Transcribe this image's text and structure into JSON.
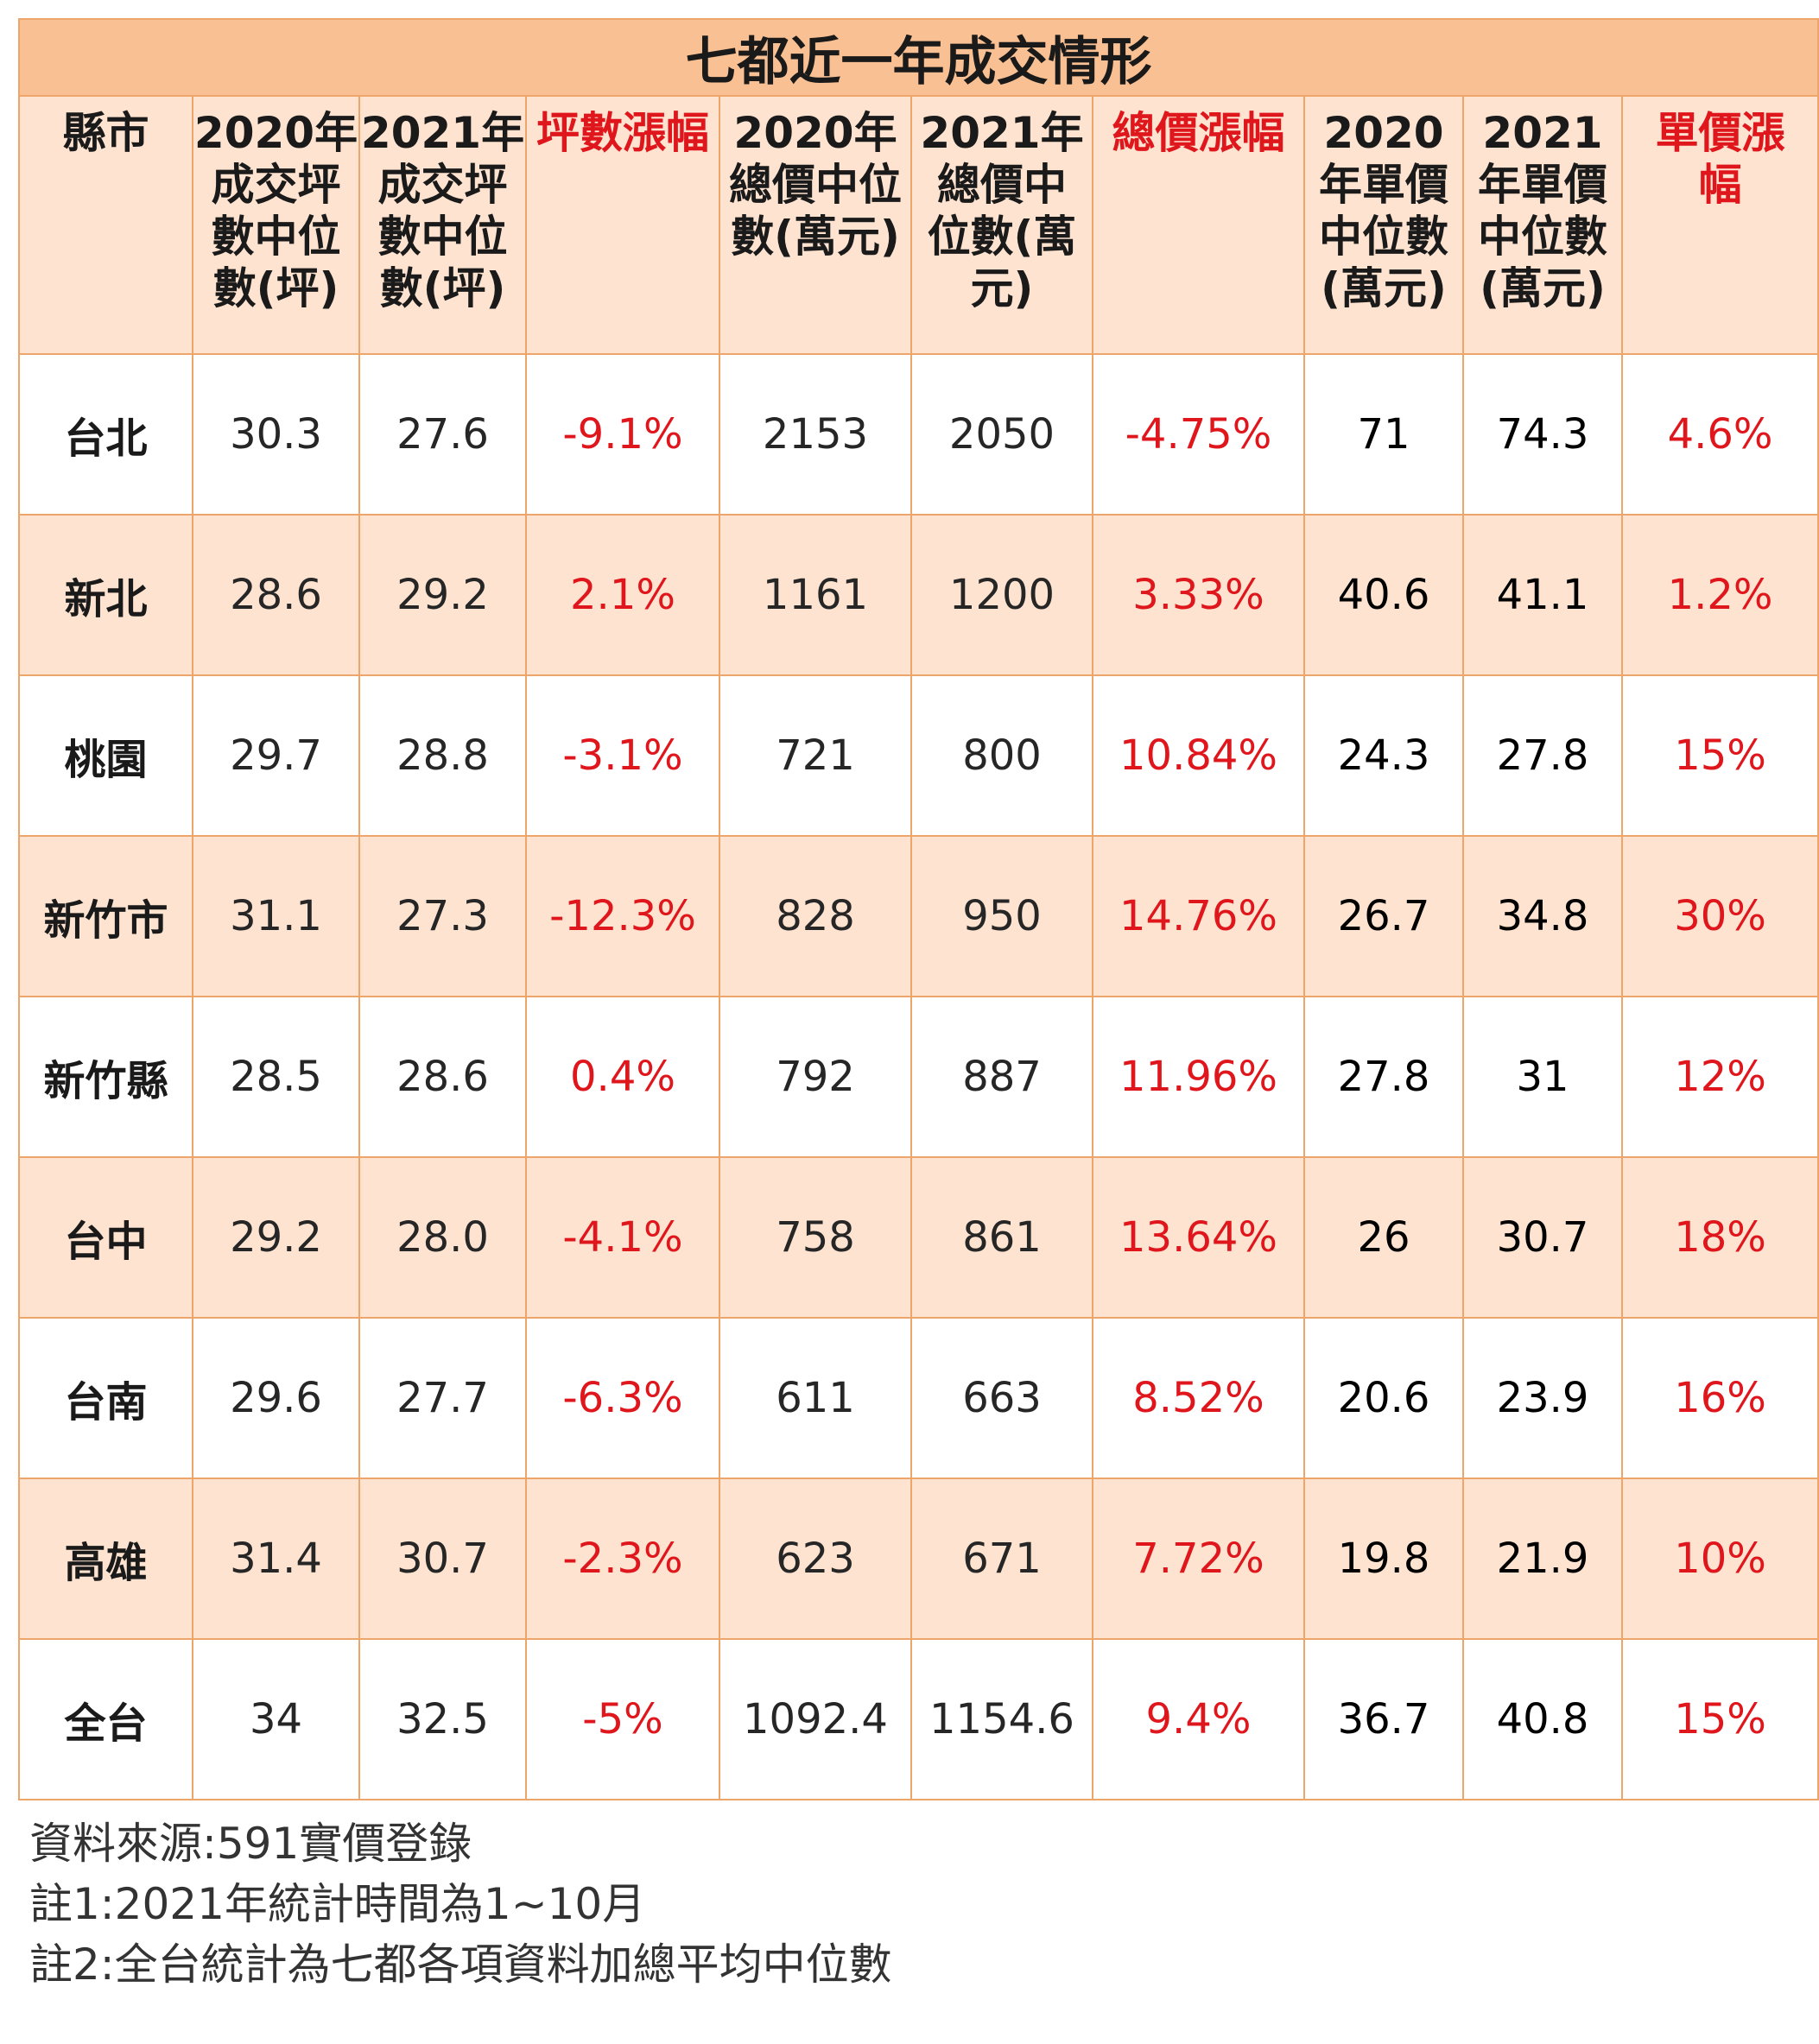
{
  "chart_data": {
    "type": "table",
    "title": "七都近一年成交情形",
    "headers": [
      "縣市",
      "2020年成交坪數中位數(坪)",
      "2021年成交坪數中位數(坪)",
      "坪數漲幅",
      "2020年總價中位數(萬元)",
      "2021年總價中位數(萬元)",
      "總價漲幅",
      "2020年單價中位數(萬元)",
      "2021年單價中位數(萬元)",
      "單價漲幅"
    ],
    "header_lines": [
      [
        "縣市"
      ],
      [
        "2020年",
        "成交坪",
        "數中位",
        "數(坪)"
      ],
      [
        "2021年",
        "成交坪",
        "數中位",
        "數(坪)"
      ],
      [
        "坪數漲幅"
      ],
      [
        "2020年",
        "總價中位",
        "數(萬元)"
      ],
      [
        "2021年",
        "總價中",
        "位數(萬",
        "元)"
      ],
      [
        "總價漲幅"
      ],
      [
        "2020",
        "年單價",
        "中位數",
        "(萬元)"
      ],
      [
        "2021",
        "年單價",
        "中位數",
        "(萬元)"
      ],
      [
        "單價漲",
        "幅"
      ]
    ],
    "rows": [
      [
        "台北",
        "30.3",
        "27.6",
        "-9.1%",
        "2153",
        "2050",
        "-4.75%",
        "71",
        "74.3",
        "4.6%"
      ],
      [
        "新北",
        "28.6",
        "29.2",
        "2.1%",
        "1161",
        "1200",
        "3.33%",
        "40.6",
        "41.1",
        "1.2%"
      ],
      [
        "桃園",
        "29.7",
        "28.8",
        "-3.1%",
        "721",
        "800",
        "10.84%",
        "24.3",
        "27.8",
        "15%"
      ],
      [
        "新竹市",
        "31.1",
        "27.3",
        "-12.3%",
        "828",
        "950",
        "14.76%",
        "26.7",
        "34.8",
        "30%"
      ],
      [
        "新竹縣",
        "28.5",
        "28.6",
        "0.4%",
        "792",
        "887",
        "11.96%",
        "27.8",
        "31",
        "12%"
      ],
      [
        "台中",
        "29.2",
        "28.0",
        "-4.1%",
        "758",
        "861",
        "13.64%",
        "26",
        "30.7",
        "18%"
      ],
      [
        "台南",
        "29.6",
        "27.7",
        "-6.3%",
        "611",
        "663",
        "8.52%",
        "20.6",
        "23.9",
        "16%"
      ],
      [
        "高雄",
        "31.4",
        "30.7",
        "-2.3%",
        "623",
        "671",
        "7.72%",
        "19.8",
        "21.9",
        "10%"
      ],
      [
        "全台",
        "34",
        "32.5",
        "-5%",
        "1092.4",
        "1154.6",
        "9.4%",
        "36.7",
        "40.8",
        "15%"
      ]
    ],
    "highlight_columns": [
      3,
      6,
      9
    ]
  },
  "notes": [
    "資料來源:591實價登錄",
    "註1:2021年統計時間為1~10月",
    "註2:全台統計為七都各項資料加總平均中位數"
  ],
  "colors": {
    "title_bg": "#f9c093",
    "header_bg": "#fde3d0",
    "stripe_bg": "#fde3d0",
    "border": "#eea56a",
    "highlight_text": "#e0161d"
  }
}
